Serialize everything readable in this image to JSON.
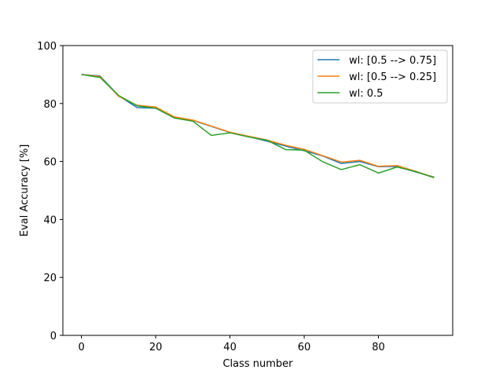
{
  "chart_data": {
    "type": "line",
    "title": "",
    "xlabel": "Class number",
    "ylabel": "Eval Accuracy [%]",
    "xlim": [
      -5,
      100
    ],
    "ylim": [
      0,
      100
    ],
    "xticks": [
      0,
      20,
      40,
      60,
      80
    ],
    "yticks": [
      0,
      20,
      40,
      60,
      80,
      100
    ],
    "grid": false,
    "legend_position": "top-right",
    "x": [
      0,
      5,
      10,
      15,
      20,
      25,
      30,
      35,
      40,
      45,
      50,
      55,
      60,
      65,
      70,
      75,
      80,
      85,
      90,
      95
    ],
    "series": [
      {
        "name": "wl: [0.5 --> 0.75]",
        "color": "#1f77b4",
        "values": [
          90.0,
          89.5,
          82.7,
          78.6,
          78.4,
          75.2,
          74.2,
          72.1,
          70.0,
          68.6,
          67.0,
          65.3,
          63.7,
          61.9,
          59.3,
          60.0,
          58.2,
          58.3,
          56.4,
          54.6
        ]
      },
      {
        "name": "wl: [0.5 --> 0.25]",
        "color": "#ff7f0e",
        "values": [
          90.0,
          89.3,
          82.5,
          79.4,
          78.8,
          75.4,
          74.3,
          72.2,
          70.1,
          68.7,
          67.4,
          65.6,
          64.2,
          62.0,
          59.8,
          60.4,
          58.3,
          58.6,
          56.6,
          54.5
        ]
      },
      {
        "name": "wl: 0.5",
        "color": "#2ca02c",
        "values": [
          90.0,
          89.0,
          82.8,
          79.2,
          78.4,
          75.0,
          73.9,
          69.0,
          69.9,
          68.5,
          67.3,
          64.1,
          63.9,
          59.9,
          57.2,
          58.9,
          56.0,
          58.1,
          56.5,
          54.4
        ]
      }
    ]
  }
}
